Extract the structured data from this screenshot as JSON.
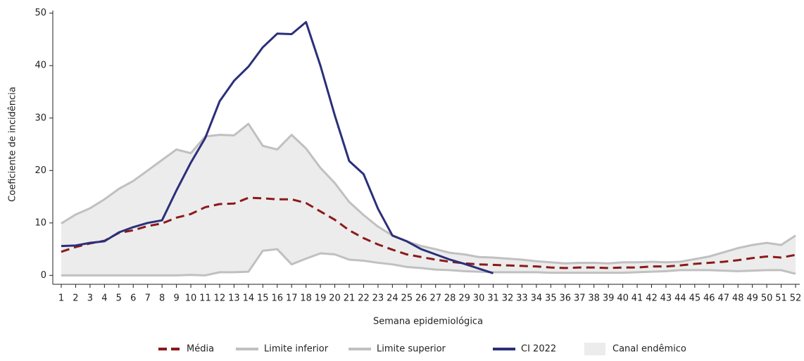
{
  "chart_data": {
    "type": "line",
    "y_label": "Coeficiente de incidência",
    "x_label": "Semana epidemiológica",
    "categories": [
      "1",
      "2",
      "3",
      "4",
      "5",
      "6",
      "7",
      "8",
      "9",
      "10",
      "11",
      "12",
      "13",
      "14",
      "15",
      "16",
      "17",
      "18",
      "19",
      "20",
      "21",
      "22",
      "23",
      "24",
      "25",
      "26",
      "27",
      "28",
      "29",
      "30",
      "31",
      "32",
      "33",
      "34",
      "35",
      "36",
      "37",
      "38",
      "39",
      "40",
      "41",
      "42",
      "43",
      "44",
      "45",
      "46",
      "47",
      "48",
      "49",
      "50",
      "51",
      "52"
    ],
    "ylim": [
      -1.7,
      50.5
    ],
    "yticks": [
      0,
      10,
      20,
      30,
      40,
      50
    ],
    "band": {
      "name": "Canal endêmico",
      "color": "#ececec"
    },
    "series": [
      {
        "name": "Média",
        "color": "#8b1a1a",
        "style": "dashed",
        "values": [
          4.5,
          5.4,
          6.1,
          6.6,
          8.1,
          8.6,
          9.4,
          9.9,
          11,
          11.7,
          13,
          13.6,
          13.7,
          14.8,
          14.7,
          14.5,
          14.5,
          13.8,
          12.2,
          10.6,
          8.6,
          7.1,
          5.9,
          4.9,
          4,
          3.5,
          3,
          2.6,
          2.3,
          2.1,
          2,
          1.9,
          1.8,
          1.7,
          1.5,
          1.4,
          1.5,
          1.5,
          1.4,
          1.5,
          1.5,
          1.7,
          1.7,
          1.9,
          2.2,
          2.4,
          2.6,
          2.9,
          3.3,
          3.6,
          3.4,
          3.9
        ]
      },
      {
        "name": "Limite inferior",
        "color": "#c0c0c0",
        "style": "solid",
        "values": [
          0,
          0,
          0,
          0,
          0,
          0,
          0,
          0,
          0,
          0.1,
          0,
          0.6,
          0.6,
          0.7,
          4.7,
          5,
          2.1,
          3.2,
          4.2,
          4,
          3,
          2.8,
          2.4,
          2.1,
          1.6,
          1.4,
          1.1,
          1,
          0.8,
          0.7,
          0.6,
          0.6,
          0.6,
          0.6,
          0.5,
          0.5,
          0.5,
          0.5,
          0.5,
          0.5,
          0.6,
          0.7,
          0.8,
          1,
          1,
          1,
          0.9,
          0.8,
          0.9,
          1,
          1,
          0.3
        ]
      },
      {
        "name": "Limite superior",
        "color": "#c0c0c0",
        "style": "solid",
        "values": [
          9.9,
          11.6,
          12.8,
          14.5,
          16.5,
          18,
          20,
          22,
          24,
          23.3,
          26.5,
          26.8,
          26.7,
          28.9,
          24.7,
          24,
          26.8,
          24.2,
          20.5,
          17.6,
          14,
          11.5,
          9.3,
          7.6,
          6.5,
          5.6,
          5,
          4.3,
          4,
          3.5,
          3.4,
          3.2,
          3,
          2.7,
          2.5,
          2.3,
          2.4,
          2.4,
          2.3,
          2.5,
          2.5,
          2.6,
          2.5,
          2.6,
          3.1,
          3.6,
          4.4,
          5.2,
          5.8,
          6.2,
          5.8,
          7.6
        ]
      },
      {
        "name": "CI 2022",
        "color": "#2b2f7a",
        "style": "solid",
        "values": [
          5.6,
          5.7,
          6.2,
          6.5,
          8.2,
          9.2,
          10,
          10.5,
          16.2,
          21.5,
          26.2,
          33.2,
          37.1,
          39.8,
          43.5,
          46.1,
          46,
          48.3,
          40,
          30.5,
          21.8,
          19.3,
          12.7,
          7.6,
          6.5,
          5,
          4,
          3,
          2.2,
          1.3,
          0.4,
          null,
          null,
          null,
          null,
          null,
          null,
          null,
          null,
          null,
          null,
          null,
          null,
          null,
          null,
          null,
          null,
          null,
          null,
          null,
          null,
          null
        ]
      }
    ]
  }
}
